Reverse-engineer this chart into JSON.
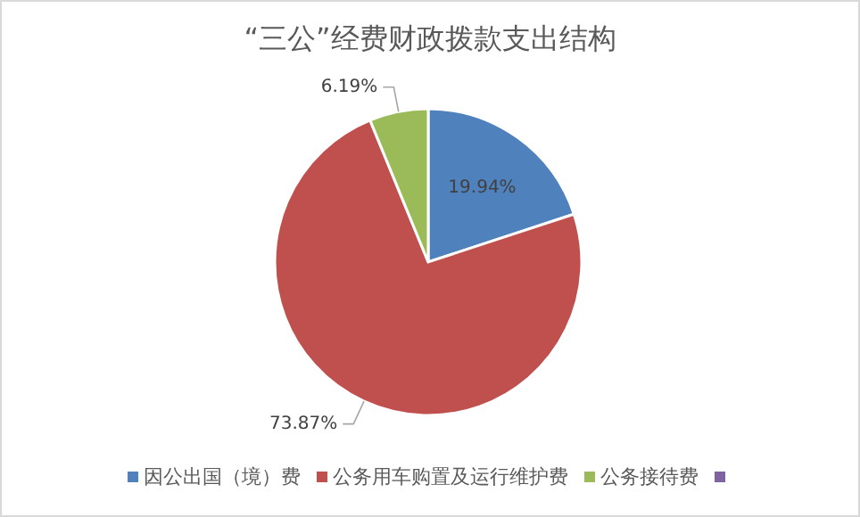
{
  "chart_data": {
    "type": "pie",
    "title": "“三公”经费财政拨款支出结构",
    "categories": [
      "因公出国（境）费",
      "公务用车购置及运行维护费",
      "公务接待费",
      null
    ],
    "values": [
      19.94,
      73.87,
      6.19,
      0
    ],
    "colors": [
      "#4f81bd",
      "#c0504d",
      "#9bbb59",
      "#8064a2"
    ],
    "value_labels": [
      "19.94%",
      "73.87%",
      "6.19%",
      null
    ],
    "legend": "bottom"
  }
}
